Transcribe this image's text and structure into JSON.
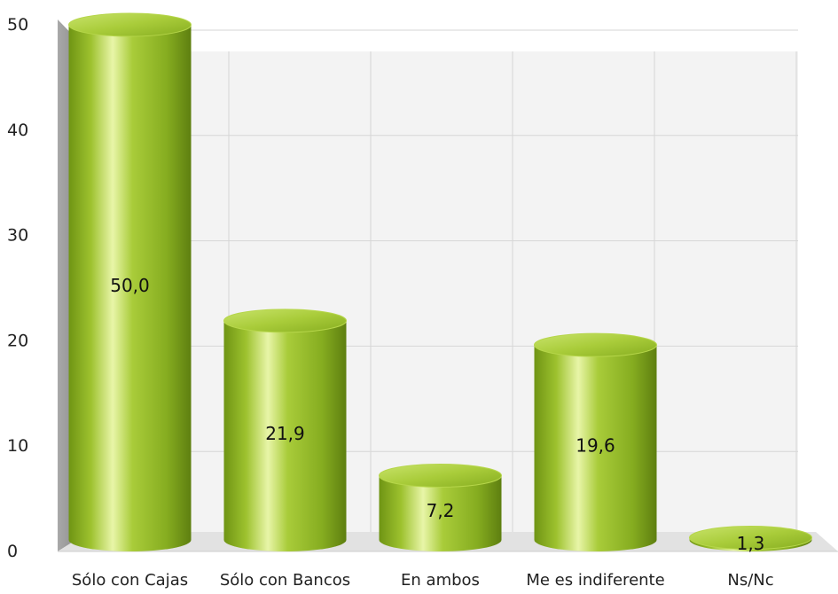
{
  "chart_data": {
    "type": "bar",
    "style": "3d-cylinder",
    "categories": [
      "Sólo con Cajas",
      "Sólo con Bancos",
      "En ambos",
      "Me es indiferente",
      "Ns/Nc"
    ],
    "values": [
      50.0,
      21.9,
      7.2,
      19.6,
      1.3
    ],
    "value_labels": [
      "50,0",
      "21,9",
      "7,2",
      "19,6",
      "1,3"
    ],
    "ylim": [
      0,
      50
    ],
    "yticks": [
      "0",
      "10",
      "20",
      "30",
      "40",
      "50"
    ],
    "grid": true,
    "title": "",
    "xlabel": "",
    "ylabel": "",
    "colors": {
      "bar_light": "#e8f5a8",
      "bar_mid": "#9dc22e",
      "bar_dark": "#5e7f10",
      "back_wall": "#f3f3f3",
      "side_wall": "#8c8c8c",
      "floor": "#e2e2e2",
      "grid": "#d6d6d6",
      "text": "#222222"
    }
  }
}
